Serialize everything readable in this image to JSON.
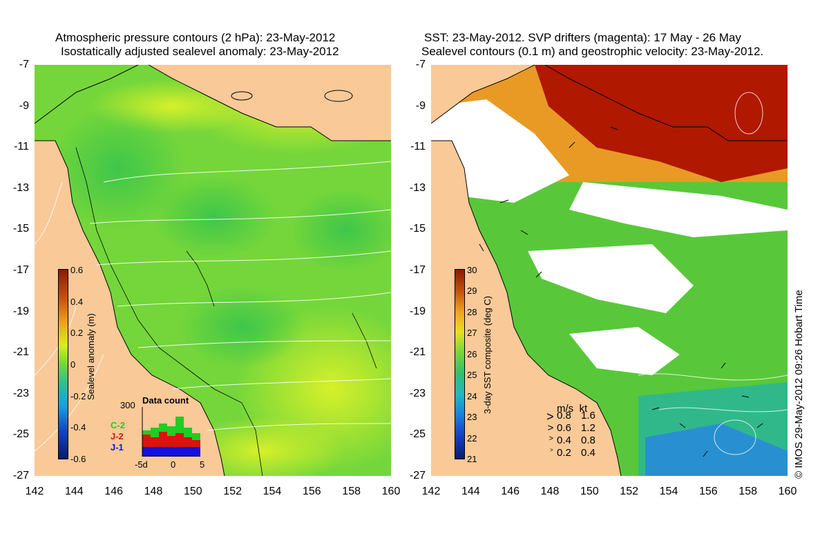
{
  "left_panel": {
    "title_line1": "Atmospheric pressure contours (2 hPa): 23-May-2012",
    "title_line2": "Isostatically adjusted sealevel anomaly: 23-May-2012",
    "colorbar": {
      "title": "Sealevel anomaly (m)",
      "ticks": [
        "0.6",
        "0.4",
        "0.2",
        "0",
        "-0.2",
        "-0.4",
        "-0.6"
      ],
      "range": [
        -0.6,
        0.6
      ]
    },
    "inset": {
      "title": "Data count",
      "ymax_label": "300",
      "xticks": [
        "-5d",
        "0",
        "5"
      ],
      "legend": [
        {
          "label": "C-2",
          "color": "#22cc22"
        },
        {
          "label": "J-2",
          "color": "#dd1111"
        },
        {
          "label": "J-1",
          "color": "#1111dd"
        }
      ]
    }
  },
  "right_panel": {
    "title_line1": "SST: 23-May-2012. SVP drifters (magenta): 17 May - 26 May",
    "title_line2": "Sealevel contours (0.1 m) and geostrophic velocity: 23-May-2012.",
    "colorbar": {
      "title": "3-day SST composite (deg C)",
      "ticks": [
        "30",
        "29",
        "28",
        "27",
        "26",
        "25",
        "24",
        "23",
        "22",
        "21"
      ],
      "range": [
        21,
        30
      ]
    },
    "velocity_legend": {
      "header": "m/s  kt",
      "rows": [
        {
          "ms": "0.8",
          "kt": "1.6"
        },
        {
          "ms": "0.6",
          "kt": "1.2"
        },
        {
          "ms": "0.4",
          "kt": "0.8"
        },
        {
          "ms": "0.2",
          "kt": "0.4"
        }
      ]
    }
  },
  "axes": {
    "y_ticks": [
      "-7",
      "-9",
      "-11",
      "-13",
      "-15",
      "-17",
      "-19",
      "-21",
      "-23",
      "-25",
      "-27"
    ],
    "x_ticks": [
      "142",
      "144",
      "146",
      "148",
      "150",
      "152",
      "154",
      "156",
      "158",
      "160"
    ]
  },
  "credit": "© IMOS 29-May-2012 09:26 Hobart Time",
  "colors": {
    "land": "#f9c998",
    "sea_green": "#6fd23a",
    "sea_yellow": "#c9ef2a",
    "sst_red": "#b01800",
    "sst_orange": "#f0a020",
    "cloud": "#ffffff"
  }
}
